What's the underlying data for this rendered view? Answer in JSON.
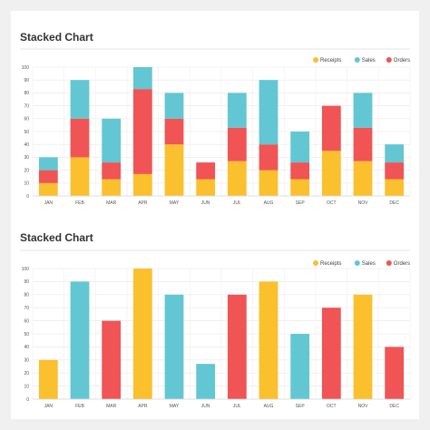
{
  "charts": [
    {
      "title": "Stacked Chart",
      "chart_data": {
        "type": "bar",
        "stacked": true,
        "title": "Stacked Chart",
        "categories": [
          "JAN",
          "FEB",
          "MAR",
          "APR",
          "MAY",
          "JUN",
          "JUL",
          "AUG",
          "SEP",
          "OCT",
          "NOV",
          "DEC"
        ],
        "ylim": [
          0,
          100
        ],
        "yticks": [
          0,
          10,
          20,
          30,
          40,
          50,
          60,
          70,
          80,
          90,
          100
        ],
        "grid": true,
        "legend": "top-right",
        "series": [
          {
            "name": "Receipts",
            "color": "#fbc02d",
            "values": [
              10,
              30,
              13,
              17,
              40,
              13,
              27,
              20,
              13,
              35,
              27,
              13
            ]
          },
          {
            "name": "Orders",
            "color": "#f05454",
            "values": [
              10,
              30,
              13,
              66,
              20,
              13,
              26,
              20,
              13,
              35,
              26,
              13
            ]
          },
          {
            "name": "Sales",
            "color": "#62c7d3",
            "values": [
              10,
              30,
              34,
              17,
              20,
              0,
              27,
              50,
              24,
              0,
              27,
              14
            ]
          }
        ]
      }
    },
    {
      "title": "Stacked Chart",
      "chart_data": {
        "type": "bar",
        "stacked": false,
        "title": "Stacked Chart",
        "categories": [
          "JAN",
          "FEB",
          "MAR",
          "APR",
          "MAY",
          "JUN",
          "JUL",
          "AUG",
          "SEP",
          "OCT",
          "NOV",
          "DEC"
        ],
        "ylim": [
          0,
          100
        ],
        "yticks": [
          0,
          10,
          20,
          30,
          40,
          50,
          60,
          70,
          80,
          90,
          100
        ],
        "grid": true,
        "legend": "top-right",
        "legend_series": [
          {
            "name": "Receipts",
            "color": "#fbc02d"
          },
          {
            "name": "Sales",
            "color": "#62c7d3"
          },
          {
            "name": "Orders",
            "color": "#f05454"
          }
        ],
        "values": [
          30,
          90,
          60,
          100,
          80,
          27,
          80,
          90,
          50,
          70,
          80,
          40
        ],
        "bar_series": [
          "Receipts",
          "Sales",
          "Orders",
          "Receipts",
          "Sales",
          "Sales",
          "Orders",
          "Receipts",
          "Sales",
          "Orders",
          "Receipts",
          "Orders"
        ]
      }
    }
  ]
}
